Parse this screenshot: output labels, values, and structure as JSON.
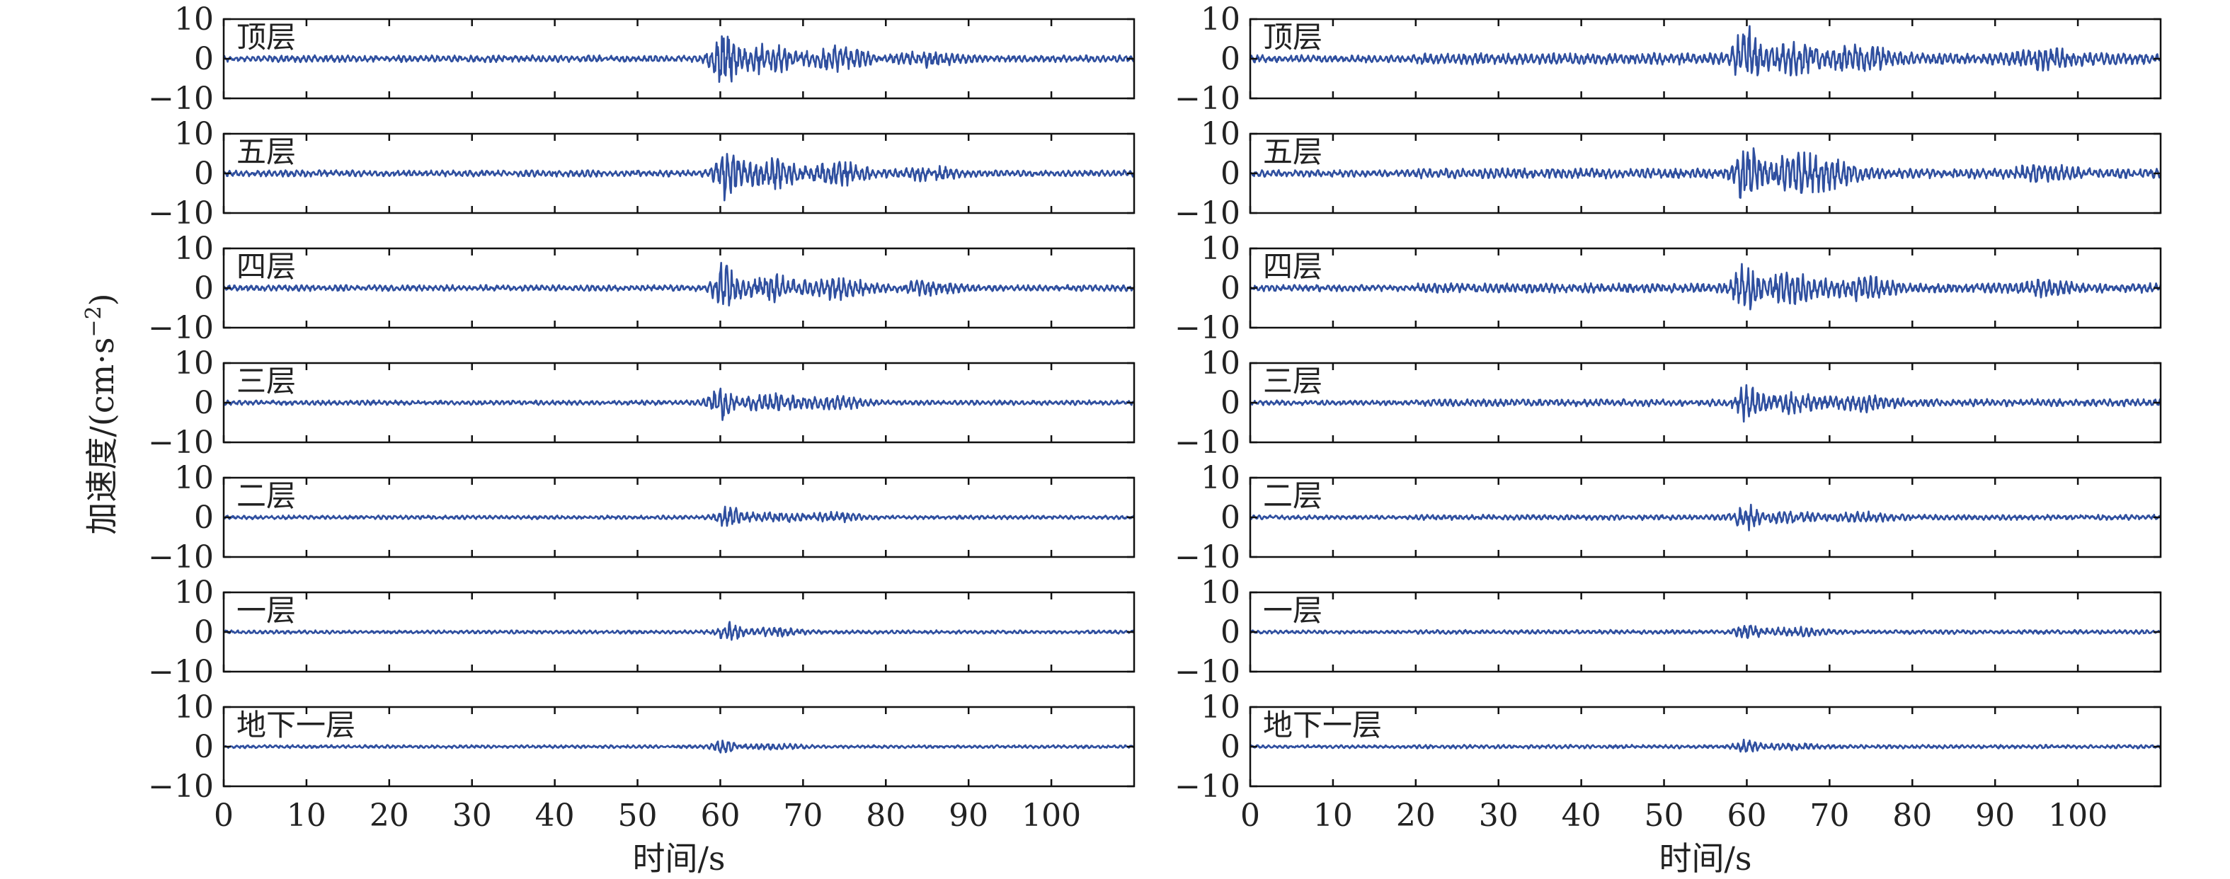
{
  "chart_data": [
    {
      "type": "line",
      "xlabel": "时间/s",
      "ylabel": "加速度/(cm·s",
      "ylabel_exponent": "−2",
      "xlim": [
        0,
        110
      ],
      "ylim": [
        -10,
        10
      ],
      "xticks": [
        "0",
        "10",
        "20",
        "30",
        "40",
        "50",
        "60",
        "70",
        "80",
        "90",
        "100"
      ],
      "yticks": [
        "10",
        "0",
        "−10"
      ],
      "grid": false,
      "color": "#2f4f9f",
      "panels": [
        {
          "label": "顶层",
          "peak_time": 60.5,
          "peak_amp": 6.5,
          "secondary": [
            {
              "t": 65.5,
              "a": 3.0
            },
            {
              "t": 74.5,
              "a": 2.5
            },
            {
              "t": 85,
              "a": 1.3
            }
          ]
        },
        {
          "label": "五层",
          "peak_time": 61.0,
          "peak_amp": 6.0,
          "secondary": [
            {
              "t": 66.0,
              "a": 3.0
            },
            {
              "t": 74.5,
              "a": 2.2
            },
            {
              "t": 85,
              "a": 1.2
            }
          ]
        },
        {
          "label": "四层",
          "peak_time": 60.5,
          "peak_amp": 5.5,
          "secondary": [
            {
              "t": 66.0,
              "a": 2.8
            },
            {
              "t": 74.5,
              "a": 2.2
            },
            {
              "t": 85,
              "a": 1.2
            }
          ]
        },
        {
          "label": "三层",
          "peak_time": 60.0,
          "peak_amp": 3.5,
          "secondary": [
            {
              "t": 66.0,
              "a": 1.8
            },
            {
              "t": 74.0,
              "a": 1.2
            }
          ]
        },
        {
          "label": "二层",
          "peak_time": 61.0,
          "peak_amp": 2.2,
          "secondary": [
            {
              "t": 66.0,
              "a": 1.0
            },
            {
              "t": 74.0,
              "a": 0.8
            }
          ]
        },
        {
          "label": "一层",
          "peak_time": 61.0,
          "peak_amp": 1.8,
          "secondary": [
            {
              "t": 66.0,
              "a": 0.8
            }
          ]
        },
        {
          "label": "地下一层",
          "peak_time": 60.5,
          "peak_amp": 1.3,
          "secondary": [
            {
              "t": 66.0,
              "a": 0.5
            }
          ]
        }
      ]
    },
    {
      "type": "line",
      "xlabel": "时间/s",
      "xlim": [
        0,
        110
      ],
      "ylim": [
        -10,
        10
      ],
      "xticks": [
        "0",
        "10",
        "20",
        "30",
        "40",
        "50",
        "60",
        "70",
        "80",
        "90",
        "100"
      ],
      "yticks": [
        "10",
        "0",
        "−10"
      ],
      "grid": false,
      "color": "#2f4f9f",
      "panels": [
        {
          "label": "顶层",
          "peak_time": 60.0,
          "peak_amp": 7.5,
          "secondary": [
            {
              "t": 65.5,
              "a": 3.2
            },
            {
              "t": 74.0,
              "a": 2.5
            },
            {
              "t": 96,
              "a": 1.5
            }
          ]
        },
        {
          "label": "五层",
          "peak_time": 60.0,
          "peak_amp": 6.5,
          "secondary": [
            {
              "t": 65.5,
              "a": 3.0
            },
            {
              "t": 70.0,
              "a": 2.2
            },
            {
              "t": 96,
              "a": 1.2
            }
          ]
        },
        {
          "label": "四层",
          "peak_time": 60.0,
          "peak_amp": 6.0,
          "secondary": [
            {
              "t": 65.5,
              "a": 2.8
            },
            {
              "t": 74.0,
              "a": 2.0
            },
            {
              "t": 96,
              "a": 1.0
            }
          ]
        },
        {
          "label": "三层",
          "peak_time": 60.0,
          "peak_amp": 4.0,
          "secondary": [
            {
              "t": 65.5,
              "a": 1.8
            },
            {
              "t": 74.0,
              "a": 1.4
            }
          ]
        },
        {
          "label": "二层",
          "peak_time": 60.0,
          "peak_amp": 2.5,
          "secondary": [
            {
              "t": 65.5,
              "a": 1.0
            },
            {
              "t": 74.0,
              "a": 0.8
            }
          ]
        },
        {
          "label": "一层",
          "peak_time": 60.0,
          "peak_amp": 1.5,
          "secondary": [
            {
              "t": 65.5,
              "a": 0.8
            }
          ]
        },
        {
          "label": "地下一层",
          "peak_time": 60.0,
          "peak_amp": 1.2,
          "secondary": [
            {
              "t": 65.5,
              "a": 0.5
            }
          ]
        }
      ]
    }
  ]
}
